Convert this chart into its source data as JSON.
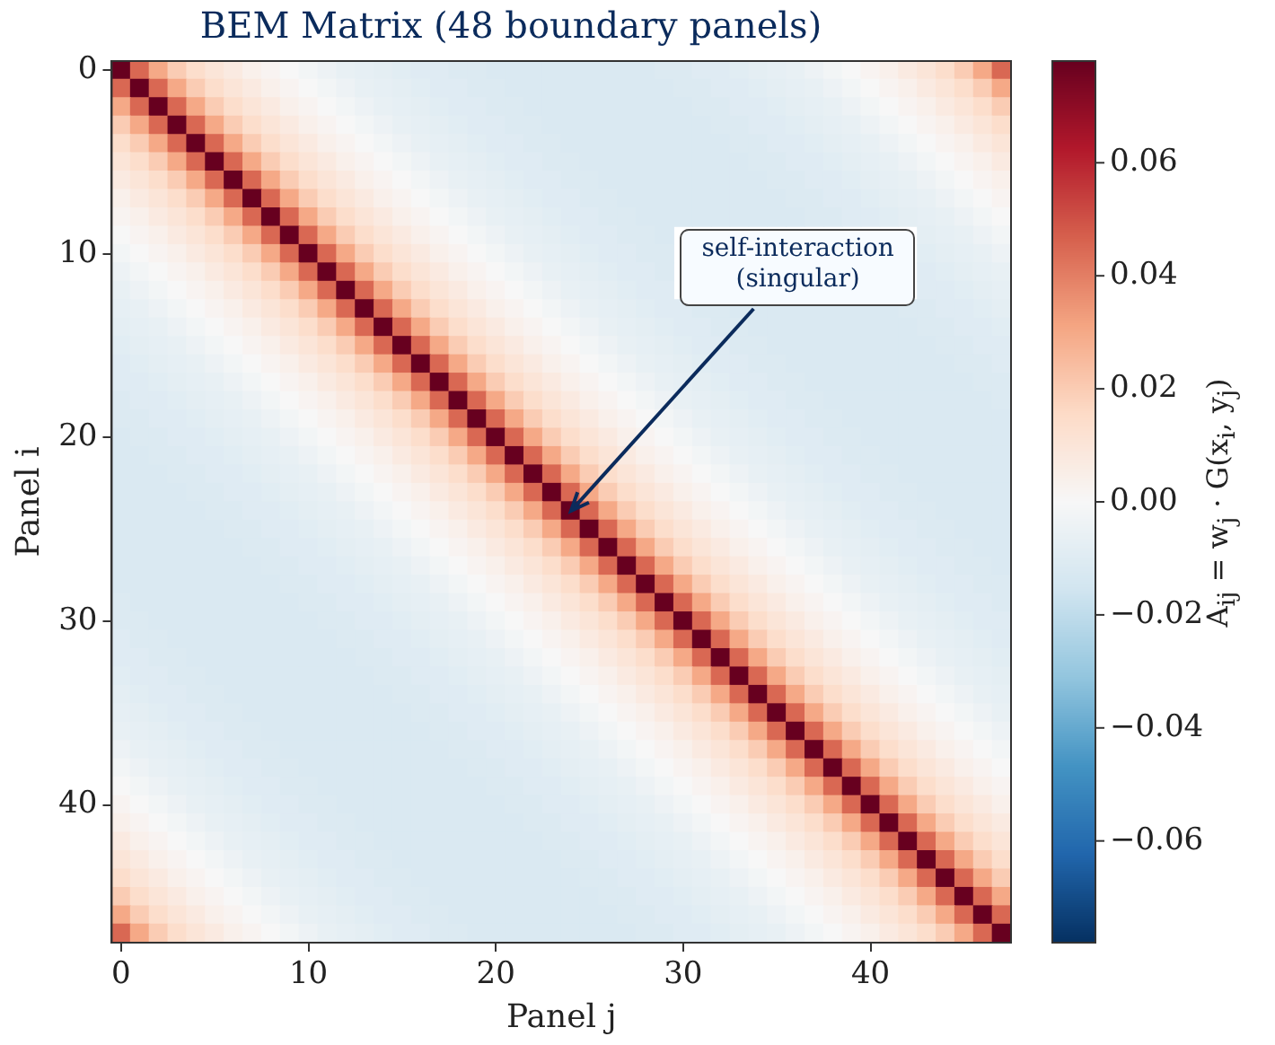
{
  "chart_data": {
    "type": "heatmap",
    "title": "BEM Matrix (48 boundary panels)",
    "xlabel": "Panel j",
    "ylabel": "Panel i",
    "clabel": "A$_{ij}$ = w$_{j}$ · G(x$_{i}$, y$_{j}$)",
    "annotations": [
      "self-interaction\n(singular)"
    ],
    "categories": [
      "0",
      null,
      null,
      null,
      null,
      null,
      null,
      null,
      null,
      null,
      "10",
      null,
      null,
      null,
      null,
      null,
      null,
      null,
      null,
      null,
      "20",
      null,
      null,
      null,
      null,
      null,
      null,
      null,
      null,
      null,
      "30",
      null,
      null,
      null,
      null,
      null,
      null,
      null,
      null,
      null,
      "40",
      null,
      null,
      null,
      null,
      null,
      null,
      null
    ],
    "y_categories": [
      "0",
      null,
      null,
      null,
      null,
      null,
      null,
      null,
      null,
      null,
      "10",
      null,
      null,
      null,
      null,
      null,
      null,
      null,
      null,
      null,
      "20",
      null,
      null,
      null,
      null,
      null,
      null,
      null,
      null,
      null,
      "30",
      null,
      null,
      null,
      null,
      null,
      null,
      null,
      null,
      null,
      "40",
      null,
      null,
      null,
      null,
      null,
      null,
      null
    ],
    "clim": [
      -0.078,
      0.078
    ],
    "cticks": [
      {
        "value": -0.06,
        "label": "−0.06"
      },
      {
        "value": -0.04,
        "label": "−0.04"
      },
      {
        "value": -0.02,
        "label": "−0.02"
      },
      {
        "value": 0,
        "label": "0.00"
      },
      {
        "value": 0.02,
        "label": "0.02"
      },
      {
        "value": 0.04,
        "label": "0.04"
      },
      {
        "value": 0.06,
        "label": "0.06"
      }
    ],
    "cells": [
      [
        0.078,
        0.045,
        0.03,
        0.02,
        0.014,
        0.01,
        0.007,
        0.004,
        0.002,
        0,
        -0.002,
        -0.004,
        -0.006,
        -0.007,
        -0.008,
        -0.009,
        -0.01,
        -0.01,
        -0.011,
        -0.011,
        -0.012,
        -0.012,
        -0.012,
        -0.012,
        -0.012,
        -0.012,
        -0.012,
        -0.012,
        -0.012,
        -0.011,
        -0.011,
        -0.01,
        -0.01,
        -0.009,
        -0.008,
        -0.007,
        -0.006,
        -0.004,
        -0.002,
        0,
        0.002,
        0.004,
        0.007,
        0.01,
        0.014,
        0.02,
        0.03,
        0.045
      ],
      [
        0.045,
        0.078,
        0.045,
        0.03,
        0.02,
        0.014,
        0.01,
        0.007,
        0.004,
        0.002,
        0,
        -0.002,
        -0.004,
        -0.006,
        -0.007,
        -0.008,
        -0.009,
        -0.01,
        -0.01,
        -0.011,
        -0.011,
        -0.012,
        -0.012,
        -0.012,
        -0.012,
        -0.012,
        -0.012,
        -0.012,
        -0.012,
        -0.012,
        -0.011,
        -0.011,
        -0.01,
        -0.01,
        -0.009,
        -0.008,
        -0.007,
        -0.006,
        -0.004,
        -0.002,
        0,
        0.002,
        0.004,
        0.007,
        0.01,
        0.014,
        0.02,
        0.03
      ],
      [
        0.03,
        0.045,
        0.078,
        0.045,
        0.03,
        0.02,
        0.014,
        0.01,
        0.007,
        0.004,
        0.002,
        0,
        -0.002,
        -0.004,
        -0.006,
        -0.007,
        -0.008,
        -0.009,
        -0.01,
        -0.01,
        -0.011,
        -0.011,
        -0.012,
        -0.012,
        -0.012,
        -0.012,
        -0.012,
        -0.012,
        -0.012,
        -0.012,
        -0.012,
        -0.011,
        -0.011,
        -0.01,
        -0.01,
        -0.009,
        -0.008,
        -0.007,
        -0.006,
        -0.004,
        -0.002,
        0,
        0.002,
        0.004,
        0.007,
        0.01,
        0.014,
        0.02
      ],
      [
        0.02,
        0.03,
        0.045,
        0.078,
        0.045,
        0.03,
        0.02,
        0.014,
        0.01,
        0.007,
        0.004,
        0.002,
        0,
        -0.002,
        -0.004,
        -0.006,
        -0.007,
        -0.008,
        -0.009,
        -0.01,
        -0.01,
        -0.011,
        -0.011,
        -0.012,
        -0.012,
        -0.012,
        -0.012,
        -0.012,
        -0.012,
        -0.012,
        -0.012,
        -0.012,
        -0.011,
        -0.011,
        -0.01,
        -0.01,
        -0.009,
        -0.008,
        -0.007,
        -0.006,
        -0.004,
        -0.002,
        0,
        0.002,
        0.004,
        0.007,
        0.01,
        0.014
      ],
      [
        0.014,
        0.02,
        0.03,
        0.045,
        0.078,
        0.045,
        0.03,
        0.02,
        0.014,
        0.01,
        0.007,
        0.004,
        0.002,
        0,
        -0.002,
        -0.004,
        -0.006,
        -0.007,
        -0.008,
        -0.009,
        -0.01,
        -0.01,
        -0.011,
        -0.011,
        -0.012,
        -0.012,
        -0.012,
        -0.012,
        -0.012,
        -0.012,
        -0.012,
        -0.012,
        -0.012,
        -0.011,
        -0.011,
        -0.01,
        -0.01,
        -0.009,
        -0.008,
        -0.007,
        -0.006,
        -0.004,
        -0.002,
        0,
        0.002,
        0.004,
        0.007,
        0.01
      ],
      [
        0.01,
        0.014,
        0.02,
        0.03,
        0.045,
        0.078,
        0.045,
        0.03,
        0.02,
        0.014,
        0.01,
        0.007,
        0.004,
        0.002,
        0,
        -0.002,
        -0.004,
        -0.006,
        -0.007,
        -0.008,
        -0.009,
        -0.01,
        -0.01,
        -0.011,
        -0.011,
        -0.012,
        -0.012,
        -0.012,
        -0.012,
        -0.012,
        -0.012,
        -0.012,
        -0.012,
        -0.012,
        -0.011,
        -0.011,
        -0.01,
        -0.01,
        -0.009,
        -0.008,
        -0.007,
        -0.006,
        -0.004,
        -0.002,
        0,
        0.002,
        0.004,
        0.007
      ],
      [
        0.007,
        0.01,
        0.014,
        0.02,
        0.03,
        0.045,
        0.078,
        0.045,
        0.03,
        0.02,
        0.014,
        0.01,
        0.007,
        0.004,
        0.002,
        0,
        -0.002,
        -0.004,
        -0.006,
        -0.007,
        -0.008,
        -0.009,
        -0.01,
        -0.01,
        -0.011,
        -0.011,
        -0.012,
        -0.012,
        -0.012,
        -0.012,
        -0.012,
        -0.012,
        -0.012,
        -0.012,
        -0.012,
        -0.011,
        -0.011,
        -0.01,
        -0.01,
        -0.009,
        -0.008,
        -0.007,
        -0.006,
        -0.004,
        -0.002,
        0,
        0.002,
        0.004
      ],
      [
        0.004,
        0.007,
        0.01,
        0.014,
        0.02,
        0.03,
        0.045,
        0.078,
        0.045,
        0.03,
        0.02,
        0.014,
        0.01,
        0.007,
        0.004,
        0.002,
        0,
        -0.002,
        -0.004,
        -0.006,
        -0.007,
        -0.008,
        -0.009,
        -0.01,
        -0.01,
        -0.011,
        -0.011,
        -0.012,
        -0.012,
        -0.012,
        -0.012,
        -0.012,
        -0.012,
        -0.012,
        -0.012,
        -0.012,
        -0.011,
        -0.011,
        -0.01,
        -0.01,
        -0.009,
        -0.008,
        -0.007,
        -0.006,
        -0.004,
        -0.002,
        0,
        0.002
      ],
      [
        0.002,
        0.004,
        0.007,
        0.01,
        0.014,
        0.02,
        0.03,
        0.045,
        0.078,
        0.045,
        0.03,
        0.02,
        0.014,
        0.01,
        0.007,
        0.004,
        0.002,
        0,
        -0.002,
        -0.004,
        -0.006,
        -0.007,
        -0.008,
        -0.009,
        -0.01,
        -0.01,
        -0.011,
        -0.011,
        -0.012,
        -0.012,
        -0.012,
        -0.012,
        -0.012,
        -0.012,
        -0.012,
        -0.012,
        -0.012,
        -0.011,
        -0.011,
        -0.01,
        -0.01,
        -0.009,
        -0.008,
        -0.007,
        -0.006,
        -0.004,
        -0.002,
        0
      ],
      [
        0,
        0.002,
        0.004,
        0.007,
        0.01,
        0.014,
        0.02,
        0.03,
        0.045,
        0.078,
        0.045,
        0.03,
        0.02,
        0.014,
        0.01,
        0.007,
        0.004,
        0.002,
        0,
        -0.002,
        -0.004,
        -0.006,
        -0.007,
        -0.008,
        -0.009,
        -0.01,
        -0.01,
        -0.011,
        -0.011,
        -0.012,
        null,
        null,
        null,
        null,
        null,
        null,
        null,
        null,
        null,
        null,
        null,
        null,
        null,
        -0.008,
        -0.007,
        -0.006,
        -0.004,
        -0.002
      ],
      [
        -0.002,
        0,
        0.002,
        0.004,
        0.007,
        0.01,
        0.014,
        0.02,
        0.03,
        0.045,
        0.078,
        0.045,
        0.03,
        0.02,
        0.014,
        0.01,
        0.007,
        0.004,
        0.002,
        0,
        -0.002,
        -0.004,
        -0.006,
        -0.007,
        -0.008,
        -0.009,
        -0.01,
        -0.01,
        -0.011,
        -0.011,
        null,
        null,
        null,
        null,
        null,
        null,
        null,
        null,
        null,
        null,
        null,
        null,
        null,
        -0.009,
        -0.008,
        -0.007,
        -0.006,
        -0.004
      ],
      [
        -0.004,
        -0.002,
        0,
        0.002,
        0.004,
        0.007,
        0.01,
        0.014,
        0.02,
        0.03,
        0.045,
        0.078,
        0.045,
        0.03,
        0.02,
        0.014,
        0.01,
        0.007,
        0.004,
        0.002,
        0,
        -0.002,
        -0.004,
        -0.006,
        -0.007,
        -0.008,
        -0.009,
        -0.01,
        -0.01,
        -0.011,
        null,
        null,
        null,
        null,
        null,
        null,
        null,
        null,
        null,
        null,
        null,
        null,
        null,
        -0.01,
        -0.009,
        -0.008,
        -0.007,
        -0.006
      ],
      [
        -0.006,
        -0.004,
        -0.002,
        0,
        0.002,
        0.004,
        0.007,
        0.01,
        0.014,
        0.02,
        0.03,
        0.045,
        0.078,
        0.045,
        0.03,
        0.02,
        0.014,
        0.01,
        0.007,
        0.004,
        0.002,
        0,
        -0.002,
        -0.004,
        -0.006,
        -0.007,
        -0.008,
        -0.009,
        -0.01,
        -0.01,
        null,
        null,
        null,
        null,
        null,
        null,
        null,
        null,
        null,
        null,
        null,
        null,
        null,
        -0.01,
        -0.01,
        -0.009,
        -0.008,
        -0.007
      ],
      [
        -0.007,
        -0.006,
        -0.004,
        -0.002,
        0,
        0.002,
        0.004,
        0.007,
        0.01,
        0.014,
        0.02,
        0.03,
        0.045,
        0.078,
        0.045,
        0.03,
        0.02,
        0.014,
        0.01,
        0.007,
        0.004,
        0.002,
        0,
        -0.002,
        -0.004,
        -0.006,
        -0.007,
        -0.008,
        -0.009,
        -0.01,
        -0.01,
        -0.011,
        -0.011,
        -0.012,
        -0.012,
        -0.012,
        -0.012,
        -0.012,
        -0.012,
        -0.012,
        -0.012,
        -0.012,
        -0.011,
        -0.011,
        -0.01,
        -0.01,
        -0.009,
        -0.008
      ],
      [
        -0.008,
        -0.007,
        -0.006,
        -0.004,
        -0.002,
        0,
        0.002,
        0.004,
        0.007,
        0.01,
        0.014,
        0.02,
        0.03,
        0.045,
        0.078,
        0.045,
        0.03,
        0.02,
        0.014,
        0.01,
        0.007,
        0.004,
        0.002,
        0,
        -0.002,
        -0.004,
        -0.006,
        -0.007,
        -0.008,
        -0.009,
        -0.01,
        -0.01,
        -0.011,
        -0.011,
        -0.012,
        -0.012,
        -0.012,
        -0.012,
        -0.012,
        -0.012,
        -0.012,
        -0.012,
        -0.012,
        -0.011,
        -0.011,
        -0.01,
        -0.01,
        -0.009
      ],
      [
        -0.009,
        -0.008,
        -0.007,
        -0.006,
        -0.004,
        -0.002,
        0,
        0.002,
        0.004,
        0.007,
        0.01,
        0.014,
        0.02,
        0.03,
        0.045,
        0.078,
        0.045,
        0.03,
        0.02,
        0.014,
        0.01,
        0.007,
        0.004,
        0.002,
        0,
        -0.002,
        -0.004,
        -0.006,
        -0.007,
        -0.008,
        -0.009,
        -0.01,
        -0.01,
        -0.011,
        -0.011,
        -0.012,
        -0.012,
        -0.012,
        -0.012,
        -0.012,
        -0.012,
        -0.012,
        -0.012,
        -0.012,
        -0.011,
        -0.011,
        -0.01,
        -0.01
      ],
      [
        -0.01,
        -0.009,
        -0.008,
        -0.007,
        -0.006,
        -0.004,
        -0.002,
        0,
        0.002,
        0.004,
        0.007,
        0.01,
        0.014,
        0.02,
        0.03,
        0.045,
        0.078,
        0.045,
        0.03,
        0.02,
        0.014,
        0.01,
        0.007,
        0.004,
        0.002,
        0,
        -0.002,
        -0.004,
        -0.006,
        -0.007,
        -0.008,
        -0.009,
        -0.01,
        -0.01,
        -0.011,
        -0.011,
        -0.012,
        -0.012,
        -0.012,
        -0.012,
        -0.012,
        -0.012,
        -0.012,
        -0.012,
        -0.012,
        -0.011,
        -0.011,
        -0.01
      ],
      [
        -0.01,
        -0.01,
        -0.009,
        -0.008,
        -0.007,
        -0.006,
        -0.004,
        -0.002,
        0,
        0.002,
        0.004,
        0.007,
        0.01,
        0.014,
        0.02,
        0.03,
        0.045,
        0.078,
        0.045,
        0.03,
        0.02,
        0.014,
        0.01,
        0.007,
        0.004,
        0.002,
        0,
        -0.002,
        -0.004,
        -0.006,
        -0.007,
        -0.008,
        -0.009,
        -0.01,
        -0.01,
        -0.011,
        -0.011,
        -0.012,
        -0.012,
        -0.012,
        -0.012,
        -0.012,
        -0.012,
        -0.012,
        -0.012,
        -0.012,
        -0.011,
        -0.011
      ],
      [
        -0.011,
        -0.01,
        -0.01,
        -0.009,
        -0.008,
        -0.007,
        -0.006,
        -0.004,
        -0.002,
        0,
        0.002,
        0.004,
        0.007,
        0.01,
        0.014,
        0.02,
        0.03,
        0.045,
        0.078,
        0.045,
        0.03,
        0.02,
        0.014,
        0.01,
        0.007,
        0.004,
        0.002,
        0,
        -0.002,
        -0.004,
        -0.006,
        -0.007,
        -0.008,
        -0.009,
        -0.01,
        -0.01,
        -0.011,
        -0.011,
        -0.012,
        -0.012,
        -0.012,
        -0.012,
        -0.012,
        -0.012,
        -0.012,
        -0.012,
        -0.012,
        -0.011
      ],
      [
        -0.011,
        -0.011,
        -0.01,
        -0.01,
        -0.009,
        -0.008,
        -0.007,
        -0.006,
        -0.004,
        -0.002,
        0,
        0.002,
        0.004,
        0.007,
        0.01,
        0.014,
        0.02,
        0.03,
        0.045,
        0.078,
        0.045,
        0.03,
        0.02,
        0.014,
        0.01,
        0.007,
        0.004,
        0.002,
        0,
        -0.002,
        -0.004,
        -0.006,
        -0.007,
        -0.008,
        -0.009,
        -0.01,
        -0.01,
        -0.011,
        -0.011,
        -0.012,
        -0.012,
        -0.012,
        -0.012,
        -0.012,
        -0.012,
        -0.012,
        -0.012,
        -0.012
      ],
      [
        -0.012,
        -0.011,
        -0.011,
        -0.01,
        -0.01,
        -0.009,
        -0.008,
        -0.007,
        -0.006,
        -0.004,
        -0.002,
        0,
        0.002,
        0.004,
        0.007,
        0.01,
        0.014,
        0.02,
        0.03,
        0.045,
        0.078,
        0.045,
        0.03,
        0.02,
        0.014,
        0.01,
        0.007,
        0.004,
        0.002,
        0,
        -0.002,
        -0.004,
        -0.006,
        -0.007,
        -0.008,
        -0.009,
        -0.01,
        -0.01,
        -0.011,
        -0.011,
        -0.012,
        -0.012,
        -0.012,
        -0.012,
        -0.012,
        -0.012,
        -0.012,
        -0.012
      ],
      [
        -0.012,
        -0.012,
        -0.011,
        -0.011,
        -0.01,
        -0.01,
        -0.009,
        -0.008,
        -0.007,
        -0.006,
        -0.004,
        -0.002,
        0,
        0.002,
        0.004,
        0.007,
        0.01,
        0.014,
        0.02,
        0.03,
        0.045,
        0.078,
        0.045,
        0.03,
        0.02,
        0.014,
        0.01,
        0.007,
        0.004,
        0.002,
        0,
        -0.002,
        -0.004,
        -0.006,
        -0.007,
        -0.008,
        -0.009,
        -0.01,
        -0.01,
        -0.011,
        -0.011,
        -0.012,
        -0.012,
        -0.012,
        -0.012,
        -0.012,
        -0.012,
        -0.012
      ],
      [
        -0.012,
        -0.012,
        -0.012,
        -0.011,
        -0.011,
        -0.01,
        -0.01,
        -0.009,
        -0.008,
        -0.007,
        -0.006,
        -0.004,
        -0.002,
        0,
        0.002,
        0.004,
        0.007,
        0.01,
        0.014,
        0.02,
        0.03,
        0.045,
        0.078,
        0.045,
        0.03,
        0.02,
        0.014,
        0.01,
        0.007,
        0.004,
        0.002,
        0,
        -0.002,
        -0.004,
        -0.006,
        -0.007,
        -0.008,
        -0.009,
        -0.01,
        -0.01,
        -0.011,
        -0.011,
        -0.012,
        -0.012,
        -0.012,
        -0.012,
        -0.012,
        -0.012
      ],
      [
        -0.012,
        -0.012,
        -0.012,
        -0.012,
        -0.011,
        -0.011,
        -0.01,
        -0.01,
        -0.009,
        -0.008,
        -0.007,
        -0.006,
        -0.004,
        -0.002,
        0,
        0.002,
        0.004,
        0.007,
        0.01,
        0.014,
        0.02,
        0.03,
        0.045,
        0.078,
        0.045,
        0.03,
        0.02,
        0.014,
        0.01,
        0.007,
        0.004,
        0.002,
        0,
        -0.002,
        -0.004,
        -0.006,
        -0.007,
        -0.008,
        -0.009,
        -0.01,
        -0.01,
        -0.011,
        -0.011,
        -0.012,
        -0.012,
        -0.012,
        -0.012,
        -0.012
      ],
      [
        -0.012,
        -0.012,
        -0.012,
        -0.012,
        -0.012,
        -0.011,
        -0.011,
        -0.01,
        -0.01,
        -0.009,
        -0.008,
        -0.007,
        -0.006,
        -0.004,
        -0.002,
        0,
        0.002,
        0.004,
        0.007,
        0.01,
        0.014,
        0.02,
        0.03,
        0.045,
        0.078,
        0.045,
        0.03,
        0.02,
        0.014,
        0.01,
        0.007,
        0.004,
        0.002,
        0,
        -0.002,
        -0.004,
        -0.006,
        -0.007,
        -0.008,
        -0.009,
        -0.01,
        -0.01,
        -0.011,
        -0.011,
        -0.012,
        -0.012,
        -0.012,
        -0.012
      ],
      [
        -0.012,
        -0.012,
        -0.012,
        -0.012,
        -0.012,
        -0.012,
        -0.011,
        -0.011,
        -0.01,
        -0.01,
        -0.009,
        -0.008,
        -0.007,
        -0.006,
        -0.004,
        -0.002,
        0,
        0.002,
        0.004,
        0.007,
        0.01,
        0.014,
        0.02,
        0.03,
        0.045,
        0.078,
        0.045,
        0.03,
        0.02,
        0.014,
        0.01,
        0.007,
        0.004,
        0.002,
        0,
        -0.002,
        -0.004,
        -0.006,
        -0.007,
        -0.008,
        -0.009,
        -0.01,
        -0.01,
        -0.011,
        -0.011,
        -0.012,
        -0.012,
        -0.012
      ],
      [
        -0.012,
        -0.012,
        -0.012,
        -0.012,
        -0.012,
        -0.012,
        -0.012,
        -0.011,
        -0.011,
        -0.01,
        -0.01,
        -0.009,
        -0.008,
        -0.007,
        -0.006,
        -0.004,
        -0.002,
        0,
        0.002,
        0.004,
        0.007,
        0.01,
        0.014,
        0.02,
        0.03,
        0.045,
        0.078,
        0.045,
        0.03,
        0.02,
        0.014,
        0.01,
        0.007,
        0.004,
        0.002,
        0,
        -0.002,
        -0.004,
        -0.006,
        -0.007,
        -0.008,
        -0.009,
        -0.01,
        -0.01,
        -0.011,
        -0.011,
        -0.012,
        -0.012
      ],
      [
        -0.012,
        -0.012,
        -0.012,
        -0.012,
        -0.012,
        -0.012,
        -0.012,
        -0.012,
        -0.011,
        -0.011,
        -0.01,
        -0.01,
        -0.009,
        -0.008,
        -0.007,
        -0.006,
        -0.004,
        -0.002,
        0,
        0.002,
        0.004,
        0.007,
        0.01,
        0.014,
        0.02,
        0.03,
        0.045,
        0.078,
        0.045,
        0.03,
        0.02,
        0.014,
        0.01,
        0.007,
        0.004,
        0.002,
        0,
        -0.002,
        -0.004,
        -0.006,
        -0.007,
        -0.008,
        -0.009,
        -0.01,
        -0.01,
        -0.011,
        -0.011,
        -0.012
      ],
      [
        -0.012,
        -0.012,
        -0.012,
        -0.012,
        -0.012,
        -0.012,
        -0.012,
        -0.012,
        -0.012,
        -0.011,
        -0.011,
        -0.01,
        -0.01,
        -0.009,
        -0.008,
        -0.007,
        -0.006,
        -0.004,
        -0.002,
        0,
        0.002,
        0.004,
        0.007,
        0.01,
        0.014,
        0.02,
        0.03,
        0.045,
        0.078,
        0.045,
        0.03,
        0.02,
        0.014,
        0.01,
        0.007,
        0.004,
        0.002,
        0,
        -0.002,
        -0.004,
        -0.006,
        -0.007,
        -0.008,
        -0.009,
        -0.01,
        -0.01,
        -0.011,
        -0.011
      ],
      [
        -0.011,
        -0.012,
        -0.012,
        -0.012,
        -0.012,
        -0.012,
        -0.012,
        -0.012,
        -0.012,
        -0.012,
        -0.011,
        -0.011,
        -0.01,
        -0.01,
        -0.009,
        -0.008,
        -0.007,
        -0.006,
        -0.004,
        -0.002,
        0,
        0.002,
        0.004,
        0.007,
        0.01,
        0.014,
        0.02,
        0.03,
        0.045,
        0.078,
        0.045,
        0.03,
        0.02,
        0.014,
        0.01,
        0.007,
        0.004,
        0.002,
        0,
        -0.002,
        -0.004,
        -0.006,
        -0.007,
        -0.008,
        -0.009,
        -0.01,
        -0.01,
        -0.011
      ],
      [
        -0.011,
        -0.011,
        -0.012,
        -0.012,
        -0.012,
        -0.012,
        -0.012,
        -0.012,
        -0.012,
        -0.012,
        -0.012,
        -0.011,
        -0.011,
        -0.01,
        -0.01,
        -0.009,
        -0.008,
        -0.007,
        -0.006,
        -0.004,
        -0.002,
        0,
        0.002,
        0.004,
        0.007,
        0.01,
        0.014,
        0.02,
        0.03,
        0.045,
        0.078,
        0.045,
        0.03,
        0.02,
        0.014,
        0.01,
        0.007,
        0.004,
        0.002,
        0,
        -0.002,
        -0.004,
        -0.006,
        -0.007,
        -0.008,
        -0.009,
        -0.01,
        -0.01
      ],
      [
        -0.01,
        -0.011,
        -0.011,
        -0.012,
        -0.012,
        -0.012,
        -0.012,
        -0.012,
        -0.012,
        -0.012,
        -0.012,
        -0.012,
        -0.011,
        -0.011,
        -0.01,
        -0.01,
        -0.009,
        -0.008,
        -0.007,
        -0.006,
        -0.004,
        -0.002,
        0,
        0.002,
        0.004,
        0.007,
        0.01,
        0.014,
        0.02,
        0.03,
        0.045,
        0.078,
        0.045,
        0.03,
        0.02,
        0.014,
        0.01,
        0.007,
        0.004,
        0.002,
        0,
        -0.002,
        -0.004,
        -0.006,
        -0.007,
        -0.008,
        -0.009,
        -0.01
      ],
      [
        -0.01,
        -0.01,
        -0.011,
        -0.011,
        -0.012,
        -0.012,
        -0.012,
        -0.012,
        -0.012,
        -0.012,
        -0.012,
        -0.012,
        -0.012,
        -0.011,
        -0.011,
        -0.01,
        -0.01,
        -0.009,
        -0.008,
        -0.007,
        -0.006,
        -0.004,
        -0.002,
        0,
        0.002,
        0.004,
        0.007,
        0.01,
        0.014,
        0.02,
        0.03,
        0.045,
        0.078,
        0.045,
        0.03,
        0.02,
        0.014,
        0.01,
        0.007,
        0.004,
        0.002,
        0,
        -0.002,
        -0.004,
        -0.006,
        -0.007,
        -0.008,
        -0.009
      ],
      [
        -0.009,
        -0.01,
        -0.01,
        -0.011,
        -0.011,
        -0.012,
        -0.012,
        -0.012,
        -0.012,
        -0.012,
        -0.012,
        -0.012,
        -0.012,
        -0.012,
        -0.011,
        -0.011,
        -0.01,
        -0.01,
        -0.009,
        -0.008,
        -0.007,
        -0.006,
        -0.004,
        -0.002,
        0,
        0.002,
        0.004,
        0.007,
        0.01,
        0.014,
        0.02,
        0.03,
        0.045,
        0.078,
        0.045,
        0.03,
        0.02,
        0.014,
        0.01,
        0.007,
        0.004,
        0.002,
        0,
        -0.002,
        -0.004,
        -0.006,
        -0.007,
        -0.008
      ],
      [
        -0.008,
        -0.009,
        -0.01,
        -0.01,
        -0.011,
        -0.011,
        -0.012,
        -0.012,
        -0.012,
        -0.012,
        -0.012,
        -0.012,
        -0.012,
        -0.012,
        -0.012,
        -0.011,
        -0.011,
        -0.01,
        -0.01,
        -0.009,
        -0.008,
        -0.007,
        -0.006,
        -0.004,
        -0.002,
        0,
        0.002,
        0.004,
        0.007,
        0.01,
        0.014,
        0.02,
        0.03,
        0.045,
        0.078,
        0.045,
        0.03,
        0.02,
        0.014,
        0.01,
        0.007,
        0.004,
        0.002,
        0,
        -0.002,
        -0.004,
        -0.006,
        -0.007
      ],
      [
        -0.007,
        -0.008,
        -0.009,
        -0.01,
        -0.01,
        -0.011,
        -0.011,
        -0.012,
        -0.012,
        -0.012,
        -0.012,
        -0.012,
        -0.012,
        -0.012,
        -0.012,
        -0.012,
        -0.011,
        -0.011,
        -0.01,
        -0.01,
        -0.009,
        -0.008,
        -0.007,
        -0.006,
        -0.004,
        -0.002,
        0,
        0.002,
        0.004,
        0.007,
        0.01,
        0.014,
        0.02,
        0.03,
        0.045,
        0.078,
        0.045,
        0.03,
        0.02,
        0.014,
        0.01,
        0.007,
        0.004,
        0.002,
        0,
        -0.002,
        -0.004,
        -0.006
      ],
      [
        -0.006,
        -0.007,
        -0.008,
        -0.009,
        -0.01,
        -0.01,
        -0.011,
        -0.011,
        -0.012,
        -0.012,
        -0.012,
        -0.012,
        -0.012,
        -0.012,
        -0.012,
        -0.012,
        -0.012,
        -0.011,
        -0.011,
        -0.01,
        -0.01,
        -0.009,
        -0.008,
        -0.007,
        -0.006,
        -0.004,
        -0.002,
        0,
        0.002,
        0.004,
        0.007,
        0.01,
        0.014,
        0.02,
        0.03,
        0.045,
        0.078,
        0.045,
        0.03,
        0.02,
        0.014,
        0.01,
        0.007,
        0.004,
        0.002,
        0,
        -0.002,
        -0.004
      ],
      [
        -0.004,
        -0.006,
        -0.007,
        -0.008,
        -0.009,
        -0.01,
        -0.01,
        -0.011,
        -0.011,
        -0.012,
        -0.012,
        -0.012,
        -0.012,
        -0.012,
        -0.012,
        -0.012,
        -0.012,
        -0.012,
        -0.011,
        -0.011,
        -0.01,
        -0.01,
        -0.009,
        -0.008,
        -0.007,
        -0.006,
        -0.004,
        -0.002,
        0,
        0.002,
        0.004,
        0.007,
        0.01,
        0.014,
        0.02,
        0.03,
        0.045,
        0.078,
        0.045,
        0.03,
        0.02,
        0.014,
        0.01,
        0.007,
        0.004,
        0.002,
        0,
        -0.002
      ],
      [
        -0.002,
        -0.004,
        -0.006,
        -0.007,
        -0.008,
        -0.009,
        -0.01,
        -0.01,
        -0.011,
        -0.011,
        -0.012,
        -0.012,
        -0.012,
        -0.012,
        -0.012,
        -0.012,
        -0.012,
        -0.012,
        -0.012,
        -0.011,
        -0.011,
        -0.01,
        -0.01,
        -0.009,
        -0.008,
        -0.007,
        -0.006,
        -0.004,
        -0.002,
        0,
        0.002,
        0.004,
        0.007,
        0.01,
        0.014,
        0.02,
        0.03,
        0.045,
        0.078,
        0.045,
        0.03,
        0.02,
        0.014,
        0.01,
        0.007,
        0.004,
        0.002,
        0
      ],
      [
        0,
        -0.002,
        -0.004,
        -0.006,
        -0.007,
        -0.008,
        -0.009,
        -0.01,
        -0.01,
        -0.011,
        -0.011,
        -0.012,
        -0.012,
        -0.012,
        -0.012,
        -0.012,
        -0.012,
        -0.012,
        -0.012,
        -0.012,
        -0.011,
        -0.011,
        -0.01,
        -0.01,
        -0.009,
        -0.008,
        -0.007,
        -0.006,
        -0.004,
        -0.002,
        0,
        0.002,
        0.004,
        0.007,
        0.01,
        0.014,
        0.02,
        0.03,
        0.045,
        0.078,
        0.045,
        0.03,
        0.02,
        0.014,
        0.01,
        0.007,
        0.004,
        0.002
      ],
      [
        0.002,
        0,
        -0.002,
        -0.004,
        -0.006,
        -0.007,
        -0.008,
        -0.009,
        -0.01,
        -0.01,
        -0.011,
        -0.011,
        -0.012,
        -0.012,
        -0.012,
        -0.012,
        -0.012,
        -0.012,
        -0.012,
        -0.012,
        -0.012,
        -0.011,
        -0.011,
        -0.01,
        -0.01,
        -0.009,
        -0.008,
        -0.007,
        -0.006,
        -0.004,
        -0.002,
        0,
        0.002,
        0.004,
        0.007,
        0.01,
        0.014,
        0.02,
        0.03,
        0.045,
        0.078,
        0.045,
        0.03,
        0.02,
        0.014,
        0.01,
        0.007,
        0.004
      ],
      [
        0.004,
        0.002,
        0,
        -0.002,
        -0.004,
        -0.006,
        -0.007,
        -0.008,
        -0.009,
        -0.01,
        -0.01,
        -0.011,
        -0.011,
        -0.012,
        -0.012,
        -0.012,
        -0.012,
        -0.012,
        -0.012,
        -0.012,
        -0.012,
        -0.012,
        -0.011,
        -0.011,
        -0.01,
        -0.01,
        -0.009,
        -0.008,
        -0.007,
        -0.006,
        -0.004,
        -0.002,
        0,
        0.002,
        0.004,
        0.007,
        0.01,
        0.014,
        0.02,
        0.03,
        0.045,
        0.078,
        0.045,
        0.03,
        0.02,
        0.014,
        0.01,
        0.007
      ],
      [
        0.007,
        0.004,
        0.002,
        0,
        -0.002,
        -0.004,
        -0.006,
        -0.007,
        -0.008,
        -0.009,
        -0.01,
        -0.01,
        -0.011,
        -0.011,
        -0.012,
        -0.012,
        -0.012,
        -0.012,
        -0.012,
        -0.012,
        -0.012,
        -0.012,
        -0.012,
        -0.011,
        -0.011,
        -0.01,
        -0.01,
        -0.009,
        -0.008,
        -0.007,
        -0.006,
        -0.004,
        -0.002,
        0,
        0.002,
        0.004,
        0.007,
        0.01,
        0.014,
        0.02,
        0.03,
        0.045,
        0.078,
        0.045,
        0.03,
        0.02,
        0.014,
        0.01
      ],
      [
        0.01,
        0.007,
        0.004,
        0.002,
        0,
        -0.002,
        -0.004,
        -0.006,
        -0.007,
        -0.008,
        -0.009,
        -0.01,
        -0.01,
        -0.011,
        -0.011,
        -0.012,
        -0.012,
        -0.012,
        -0.012,
        -0.012,
        -0.012,
        -0.012,
        -0.012,
        -0.012,
        -0.011,
        -0.011,
        -0.01,
        -0.01,
        -0.009,
        -0.008,
        -0.007,
        -0.006,
        -0.004,
        -0.002,
        0,
        0.002,
        0.004,
        0.007,
        0.01,
        0.014,
        0.02,
        0.03,
        0.045,
        0.078,
        0.045,
        0.03,
        0.02,
        0.014
      ],
      [
        0.014,
        0.01,
        0.007,
        0.004,
        0.002,
        0,
        -0.002,
        -0.004,
        -0.006,
        -0.007,
        -0.008,
        -0.009,
        -0.01,
        -0.01,
        -0.011,
        -0.011,
        -0.012,
        -0.012,
        -0.012,
        -0.012,
        -0.012,
        -0.012,
        -0.012,
        -0.012,
        -0.012,
        -0.011,
        -0.011,
        -0.01,
        -0.01,
        -0.009,
        -0.008,
        -0.007,
        -0.006,
        -0.004,
        -0.002,
        0,
        0.002,
        0.004,
        0.007,
        0.01,
        0.014,
        0.02,
        0.03,
        0.045,
        0.078,
        0.045,
        0.03,
        0.02
      ],
      [
        0.02,
        0.014,
        0.01,
        0.007,
        0.004,
        0.002,
        0,
        -0.002,
        -0.004,
        -0.006,
        -0.007,
        -0.008,
        -0.009,
        -0.01,
        -0.01,
        -0.011,
        -0.011,
        -0.012,
        -0.012,
        -0.012,
        -0.012,
        -0.012,
        -0.012,
        -0.012,
        -0.012,
        -0.012,
        -0.011,
        -0.011,
        -0.01,
        -0.01,
        -0.009,
        -0.008,
        -0.007,
        -0.006,
        -0.004,
        -0.002,
        0,
        0.002,
        0.004,
        0.007,
        0.01,
        0.014,
        0.02,
        0.03,
        0.045,
        0.078,
        0.045,
        0.03
      ],
      [
        0.03,
        0.02,
        0.014,
        0.01,
        0.007,
        0.004,
        0.002,
        0,
        -0.002,
        -0.004,
        -0.006,
        -0.007,
        -0.008,
        -0.009,
        -0.01,
        -0.01,
        -0.011,
        -0.011,
        -0.012,
        -0.012,
        -0.012,
        -0.012,
        -0.012,
        -0.012,
        -0.012,
        -0.012,
        -0.012,
        -0.011,
        -0.011,
        -0.01,
        -0.01,
        -0.009,
        -0.008,
        -0.007,
        -0.006,
        -0.004,
        -0.002,
        0,
        0.002,
        0.004,
        0.007,
        0.01,
        0.014,
        0.02,
        0.03,
        0.045,
        0.078,
        0.045
      ],
      [
        0.045,
        0.03,
        0.02,
        0.014,
        0.01,
        0.007,
        0.004,
        0.002,
        0,
        -0.002,
        -0.004,
        -0.006,
        -0.007,
        -0.008,
        -0.009,
        -0.01,
        -0.01,
        -0.011,
        -0.011,
        -0.012,
        -0.012,
        -0.012,
        -0.012,
        -0.012,
        -0.012,
        -0.012,
        -0.012,
        -0.012,
        -0.011,
        -0.011,
        -0.01,
        -0.01,
        -0.009,
        -0.008,
        -0.007,
        -0.006,
        -0.004,
        -0.002,
        0,
        0.002,
        0.004,
        0.007,
        0.01,
        0.014,
        0.02,
        0.03,
        0.045,
        0.078
      ]
    ]
  }
}
